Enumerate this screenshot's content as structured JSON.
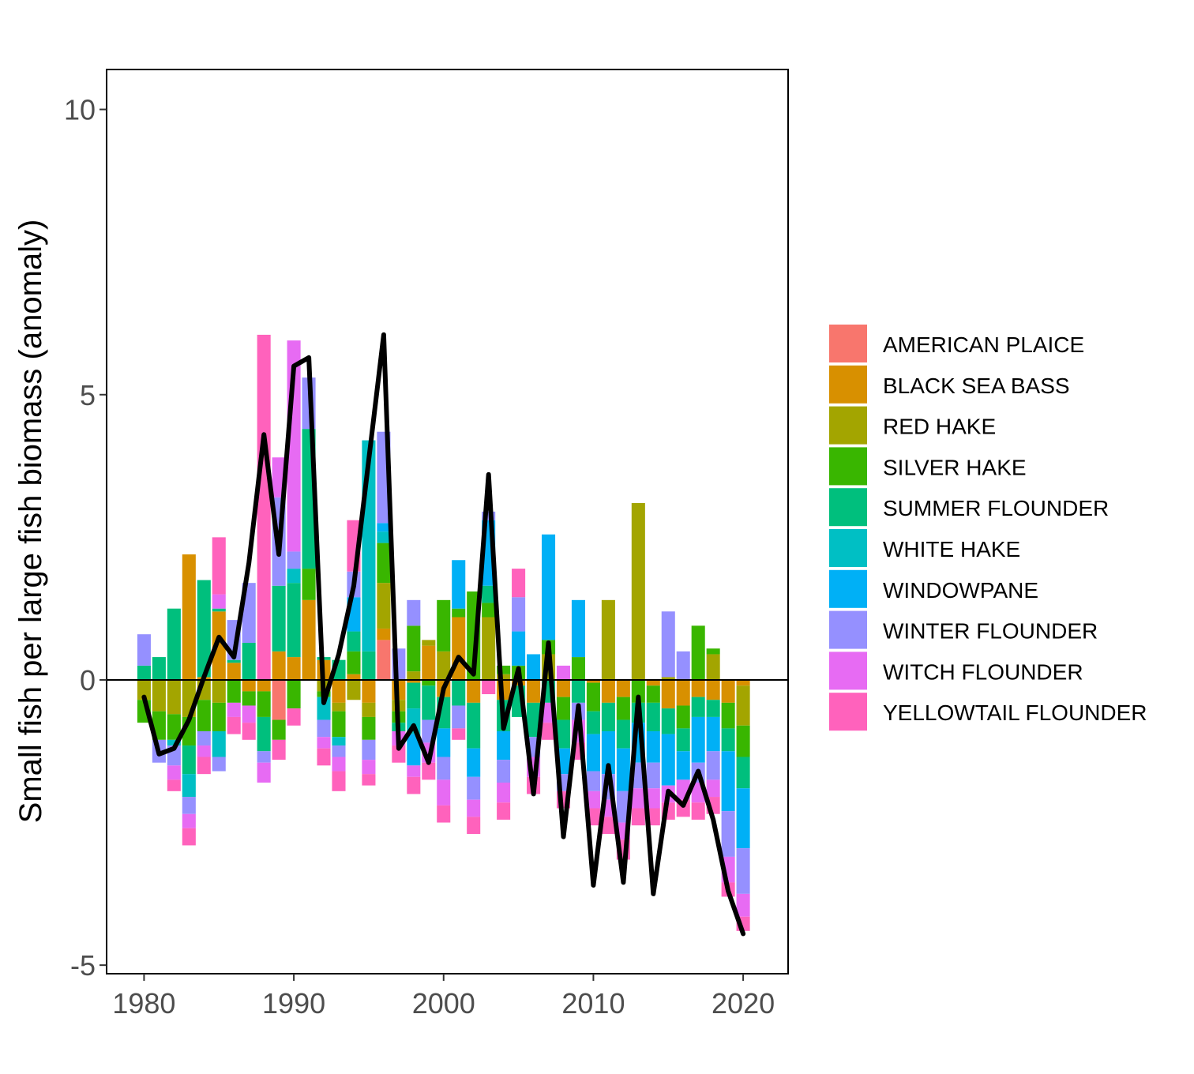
{
  "chart_data": {
    "type": "bar",
    "subtype": "stacked-diverging-with-line",
    "ylabel": "Small fish per large fish biomass (anomaly)",
    "xlabel": "",
    "xlim": [
      1977.5,
      2023
    ],
    "ylim": [
      -5.15,
      10.7
    ],
    "x_ticks": [
      1980,
      1990,
      2000,
      2010,
      2020
    ],
    "y_ticks": [
      -5,
      0,
      5,
      10
    ],
    "y_tick_labels": [
      "-5",
      "0",
      "5",
      "10"
    ],
    "zero_line": true,
    "grid": false,
    "legend_position": "right",
    "years": [
      1980,
      1981,
      1982,
      1983,
      1984,
      1985,
      1986,
      1987,
      1988,
      1989,
      1990,
      1991,
      1992,
      1993,
      1994,
      1995,
      1996,
      1997,
      1998,
      1999,
      2000,
      2001,
      2002,
      2003,
      2004,
      2005,
      2006,
      2007,
      2008,
      2009,
      2010,
      2011,
      2012,
      2013,
      2014,
      2015,
      2016,
      2017,
      2018,
      2019,
      2020
    ],
    "series": [
      {
        "name": "AMERICAN PLAICE",
        "color": "#F8766D",
        "values": [
          0,
          0,
          0,
          0,
          0,
          0,
          0,
          0,
          0,
          -0.7,
          0,
          0,
          0,
          0,
          0,
          0,
          0.7,
          0,
          0,
          0,
          0,
          0,
          0,
          0,
          0,
          0,
          0,
          0,
          0,
          0,
          0,
          0,
          0,
          0,
          0,
          0,
          0,
          0,
          0,
          0,
          0
        ]
      },
      {
        "name": "BLACK SEA BASS",
        "color": "#D89000",
        "values": [
          0,
          0,
          0,
          2.2,
          0.05,
          1.2,
          0.3,
          -0.2,
          -0.2,
          0.5,
          0.4,
          1.4,
          0.35,
          -0.4,
          0.1,
          -0.4,
          0.2,
          -0.35,
          -0.05,
          0.6,
          -0.3,
          1.1,
          -0.4,
          0,
          -0.35,
          -0.1,
          -0.4,
          0,
          -0.3,
          0,
          -0.05,
          -0.4,
          -0.3,
          0,
          -0.1,
          -0.5,
          -0.45,
          -0.3,
          -0.35,
          -0.4,
          -0.1
        ]
      },
      {
        "name": "RED HAKE",
        "color": "#A3A500",
        "values": [
          -0.35,
          -0.55,
          -0.6,
          -0.65,
          -0.35,
          -0.4,
          0,
          0,
          0,
          0,
          0,
          0,
          -0.2,
          -0.15,
          -0.35,
          -0.25,
          0.8,
          -0.2,
          0.15,
          0.1,
          0.5,
          0,
          0,
          1.1,
          0.1,
          0,
          0,
          0.45,
          0,
          0,
          0,
          1.4,
          0,
          3.1,
          0,
          0.05,
          0,
          0,
          0.45,
          0,
          -0.7
        ]
      },
      {
        "name": "SILVER HAKE",
        "color": "#39B600",
        "values": [
          -0.4,
          -0.5,
          -0.45,
          -0.5,
          -0.55,
          -0.5,
          -0.4,
          -0.25,
          -0.45,
          -0.35,
          -0.5,
          0.55,
          -0.1,
          -0.45,
          0.4,
          -0.4,
          0.7,
          -0.2,
          0.8,
          -0.1,
          0.9,
          0.15,
          1.55,
          0.25,
          0.15,
          0.25,
          0,
          0.25,
          -0.4,
          0.4,
          -0.5,
          0,
          -0.4,
          -0.4,
          -0.3,
          0,
          -0.4,
          0.95,
          0.1,
          -0.45,
          -0.55
        ]
      },
      {
        "name": "SUMMER FLOUNDER",
        "color": "#00BF7D",
        "values": [
          0.25,
          0.4,
          1.25,
          -0.5,
          1.7,
          0.05,
          0.05,
          0.65,
          -0.6,
          1.15,
          1.3,
          2.45,
          0.05,
          0.35,
          0.35,
          0.5,
          0,
          -0.15,
          -0.45,
          -0.6,
          -0.55,
          -0.45,
          -0.8,
          0.3,
          -0.55,
          -0.55,
          -0.6,
          -0.4,
          -0.5,
          -0.4,
          -0.4,
          -0.5,
          -0.5,
          -0.35,
          -0.5,
          -0.45,
          -0.4,
          -0.35,
          -0.3,
          -0.4,
          -0.55
        ]
      },
      {
        "name": "WHITE HAKE",
        "color": "#00BFC4",
        "values": [
          0,
          0,
          -0.1,
          -0.4,
          0,
          -0.45,
          0,
          0,
          0,
          0,
          0.25,
          0,
          -0.4,
          -0.15,
          0,
          3.7,
          0.2,
          0,
          -0.45,
          0,
          0,
          0,
          0,
          0,
          0,
          0,
          0,
          0,
          0,
          0,
          0,
          0,
          0,
          0,
          0,
          0,
          0,
          0,
          0,
          0,
          0
        ]
      },
      {
        "name": "WINDOWPANE",
        "color": "#00B0F6",
        "values": [
          0,
          0,
          0,
          0,
          0,
          0,
          0,
          0,
          0,
          0,
          0,
          0,
          0,
          0,
          0.6,
          0,
          0.15,
          0,
          -0.55,
          0,
          -0.5,
          0.85,
          -0.5,
          1.15,
          -0.5,
          0.6,
          0.45,
          1.85,
          -0.45,
          1.0,
          -0.65,
          -0.75,
          -0.75,
          -0.7,
          -0.55,
          -0.9,
          -0.5,
          -0.8,
          -0.6,
          -1.05,
          -1.05
        ]
      },
      {
        "name": "WINTER FLOUNDER",
        "color": "#9590FF",
        "values": [
          0.55,
          -0.4,
          -0.35,
          -0.3,
          -0.25,
          -0.25,
          0.7,
          1.05,
          -0.2,
          1.55,
          0.3,
          0.9,
          -0.3,
          -0.2,
          0.45,
          -0.35,
          1.6,
          0.55,
          0.45,
          -0.4,
          -0.4,
          -0.4,
          -0.4,
          0.15,
          -0.4,
          0.6,
          -0.35,
          0,
          -0.3,
          -0.3,
          -0.35,
          -0.45,
          -0.55,
          -0.45,
          -0.45,
          1.15,
          0.5,
          -0.35,
          -0.5,
          -0.8,
          -0.8
        ]
      },
      {
        "name": "WITCH FLOUNDER",
        "color": "#E76BF3",
        "values": [
          0,
          0,
          -0.25,
          -0.25,
          -0.2,
          0.25,
          -0.25,
          -0.3,
          -0.35,
          0.7,
          3.7,
          0,
          -0.2,
          -0.25,
          0,
          -0.25,
          0,
          -0.25,
          -0.2,
          -0.35,
          -0.45,
          0,
          -0.3,
          0,
          -0.35,
          0,
          -0.35,
          -0.35,
          0.25,
          -0.4,
          -0.3,
          -0.3,
          -0.3,
          -0.35,
          -0.35,
          -0.3,
          -0.35,
          -0.35,
          -0.3,
          -0.45,
          -0.4
        ]
      },
      {
        "name": "YELLOWTAIL FLOUNDER",
        "color": "#FF62BC",
        "values": [
          0,
          0,
          -0.2,
          -0.3,
          -0.3,
          1.0,
          -0.3,
          -0.3,
          6.05,
          -0.35,
          -0.3,
          0,
          -0.3,
          -0.35,
          0.9,
          -0.2,
          0,
          -0.3,
          -0.3,
          -0.3,
          -0.3,
          -0.2,
          -0.3,
          -0.25,
          -0.3,
          0.5,
          -0.3,
          -0.3,
          -0.3,
          -0.3,
          -0.3,
          -0.3,
          -0.35,
          -0.3,
          -0.3,
          -0.3,
          -0.3,
          -0.3,
          -0.3,
          -0.25,
          -0.25
        ]
      }
    ],
    "line": {
      "color": "#000000",
      "values": [
        -0.3,
        -1.3,
        -1.2,
        -0.7,
        0.05,
        0.75,
        0.4,
        2.05,
        4.3,
        2.2,
        5.5,
        5.65,
        -0.4,
        0.45,
        1.65,
        3.85,
        6.05,
        -1.2,
        -0.8,
        -1.45,
        -0.15,
        0.4,
        0.1,
        3.6,
        -0.85,
        0.2,
        -2.0,
        0.65,
        -2.75,
        -0.45,
        -3.6,
        -1.5,
        -3.55,
        -0.3,
        -3.75,
        -1.95,
        -2.2,
        -1.6,
        -2.45,
        -3.7,
        -4.45
      ]
    }
  }
}
